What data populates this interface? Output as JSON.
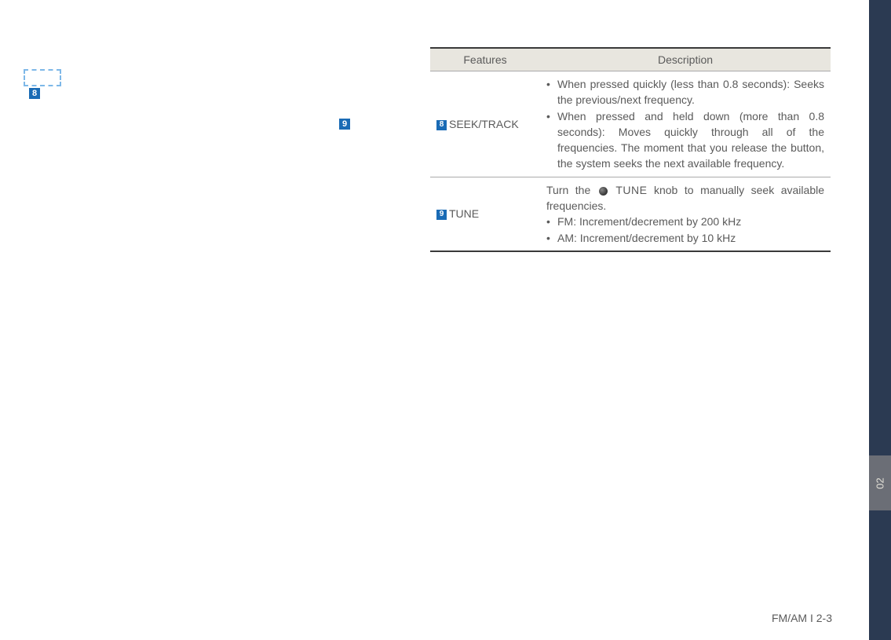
{
  "sidebar": {
    "section_number": "02"
  },
  "callouts": {
    "box_8": "8",
    "free_9": "9"
  },
  "table": {
    "headers": {
      "features": "Features",
      "description": "Description"
    },
    "rows": [
      {
        "badge": "8",
        "label": "SEEK/TRACK",
        "bullets": [
          "When pressed quickly (less than 0.8 seconds): Seeks the previous/next frequency.",
          "When pressed and held down (more than 0.8 seconds): Moves quickly through all of the frequencies. The moment that you release the button, the system seeks the next available frequency."
        ]
      },
      {
        "badge": "9",
        "label": "TUNE",
        "lead_pre": "Turn the ",
        "lead_knob": "TUNE",
        "lead_post": " knob to manually seek available frequencies.",
        "bullets": [
          "FM: Increment/decrement by 200 kHz",
          "AM: Increment/decrement by 10 kHz"
        ]
      }
    ]
  },
  "footer": "FM/AM I 2-3"
}
